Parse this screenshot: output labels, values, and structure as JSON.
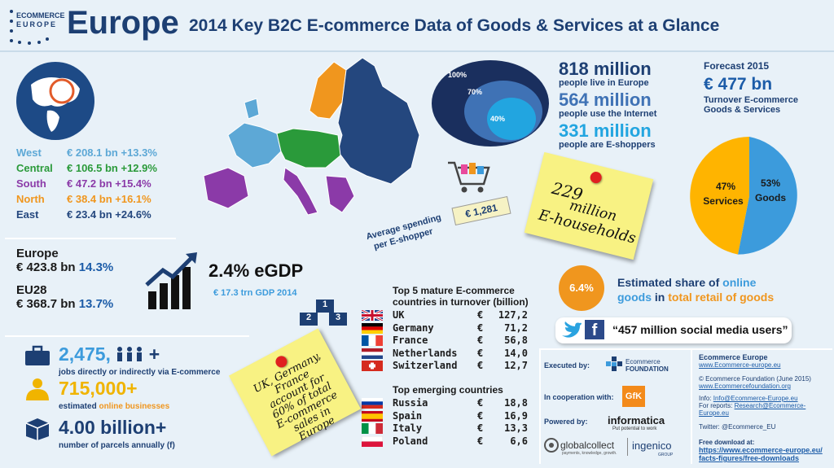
{
  "header": {
    "logo_line1": "ECOMMERCE",
    "logo_line2": "EUROPE",
    "title": "Europe",
    "subtitle": "2014 Key B2C E-commerce Data of Goods & Services at a Glance"
  },
  "regions": [
    {
      "name": "West",
      "value": "€ 208.1 bn +13.3%",
      "color": "#5da8d6"
    },
    {
      "name": "Central",
      "value": "€ 106.5 bn +12.9%",
      "color": "#2a9a3a"
    },
    {
      "name": "South",
      "value": "€ 47.2 bn +15.4%",
      "color": "#8b3aa8"
    },
    {
      "name": "North",
      "value": "€ 38.4 bn +16.1%",
      "color": "#f0961e"
    },
    {
      "name": "East",
      "value": "€ 23.4 bn +24.6%",
      "color": "#24477e"
    }
  ],
  "totals": {
    "europe_label": "Europe",
    "europe_value": "€ 423.8 bn",
    "europe_growth": "14.3%",
    "eu28_label": "EU28",
    "eu28_value": "€ 368.7 bn",
    "eu28_growth": "13.7%"
  },
  "egdp": {
    "value": "2.4% eGDP",
    "sub": "€ 17.3 trn GDP 2014"
  },
  "podium": {
    "first": "1",
    "second": "2",
    "third": "3"
  },
  "population": {
    "circle_outer": "100%",
    "circle_mid": "70%",
    "circle_inner": "40%",
    "line1_big": "818 million",
    "line1_small": "people live in Europe",
    "line2_big": "564 million",
    "line2_small": "people use the Internet",
    "line3_big": "331 million",
    "line3_small": "people are E-shoppers"
  },
  "spending": {
    "label_line1": "Average spending",
    "label_line2": "per E-shopper",
    "tag": "€ 1,281"
  },
  "households_note": {
    "line1": "229",
    "line2": "million",
    "line3": "E-households"
  },
  "forecast": {
    "label": "Forecast 2015",
    "value": "€ 477 bn",
    "desc1": "Turnover E-commerce",
    "desc2": "Goods & Services"
  },
  "pie": {
    "services_pct": "47%",
    "services_label": "Services",
    "goods_pct": "53%",
    "goods_label": "Goods",
    "services_color": "#ffb400",
    "goods_color": "#3c9bdc"
  },
  "online_share": {
    "pct": "6.4%",
    "text_a": "Estimated share of ",
    "text_b": "online",
    "text_c": "goods",
    "text_d": " in ",
    "text_e": "total retail of goods"
  },
  "social": {
    "text": "“457 million social media users”"
  },
  "top5": {
    "title_line1": "Top 5 mature E-commerce",
    "title_line2": "countries in turnover (billion)",
    "rows": [
      {
        "country": "UK",
        "currency": "€",
        "value": "127,2"
      },
      {
        "country": "Germany",
        "currency": "€",
        "value": "71,2"
      },
      {
        "country": "France",
        "currency": "€",
        "value": "56,8"
      },
      {
        "country": "Netherlands",
        "currency": "€",
        "value": "14,0"
      },
      {
        "country": "Switzerland",
        "currency": "€",
        "value": "12,7"
      }
    ]
  },
  "emerging": {
    "title": "Top emerging countries",
    "rows": [
      {
        "country": "Russia",
        "currency": "€",
        "value": "18,8"
      },
      {
        "country": "Spain",
        "currency": "€",
        "value": "16,9"
      },
      {
        "country": "Italy",
        "currency": "€",
        "value": "13,3"
      },
      {
        "country": "Poland",
        "currency": "€",
        "value": "6,6"
      }
    ]
  },
  "jobs": {
    "value": "2,475,",
    "plus": "+",
    "desc": "jobs directly or indirectly via E-commerce",
    "business_value": "715,000+",
    "business_desc_a": "estimated ",
    "business_desc_b": "online businesses",
    "parcels_value": "4.00 billion+",
    "parcels_desc": "number of parcels annually (f)"
  },
  "uk_note": {
    "line1": "UK, Germany,",
    "line2": "France",
    "line3": "account for",
    "line4": "60% of total",
    "line5": "E-commerce",
    "line6": "sales in",
    "line7": "Europe"
  },
  "partners": {
    "executed_by": "Executed by:",
    "foundation_line1": "Ecommerce",
    "foundation_line2": "FOUNDATION",
    "cooperation": "In cooperation with:",
    "gfk": "GfK",
    "powered_by": "Powered by:",
    "informatica": "informatica",
    "informatica_tag": "Put potential to work",
    "globalcollect": "globalcollect",
    "globalcollect_tag": "payments, knowledge, growth.",
    "ingenico": "ingenico",
    "ingenico_tag": "GROUP"
  },
  "footer": {
    "org": "Ecommerce Europe",
    "org_link": "www.Ecommerce-europe.eu",
    "copyright": "© Ecommerce Foundation (June 2015)",
    "copyright_link": "www.Ecommercefoundation.org",
    "info_label": "Info: ",
    "info_link": "Info@Ecommerce-Europe.eu",
    "reports_label": "For reports: ",
    "reports_link": "Research@Ecommerce-Europe.eu",
    "twitter": "Twitter: @Ecommerce_EU",
    "download_label": "Free download at:",
    "download_link1": "https://www.ecommerce-europe.eu/",
    "download_link2": "facts-figures/free-downloads"
  }
}
